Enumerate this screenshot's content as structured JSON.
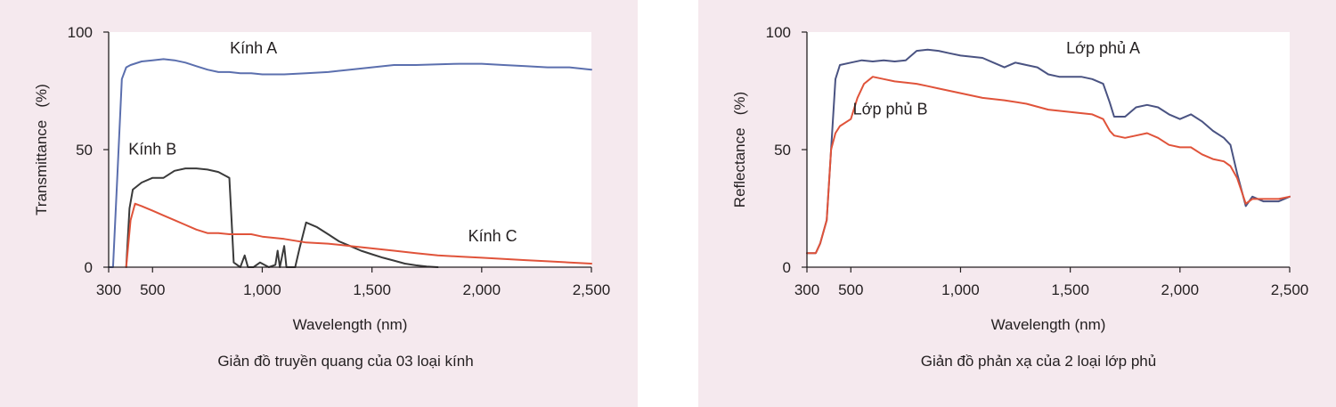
{
  "chart_data": [
    {
      "type": "line",
      "caption": "Giản đồ truyền quang của 03 loại kính",
      "xlabel": "Wavelength (nm)",
      "ylabel": "Transmittance   (%)",
      "xlim": [
        300,
        2500
      ],
      "ylim": [
        0,
        100
      ],
      "x_ticks": [
        300,
        500,
        1000,
        1500,
        2000,
        2500
      ],
      "x_tick_labels": [
        "300",
        "500",
        "1,000",
        "1,500",
        "2,000",
        "2,500"
      ],
      "y_ticks": [
        0,
        50,
        100
      ],
      "y_tick_labels": [
        "0",
        "50",
        "100"
      ],
      "grid": false,
      "series": [
        {
          "name": "Kính A",
          "color": "#5b6fae",
          "points": [
            [
              300,
              0
            ],
            [
              320,
              0
            ],
            [
              340,
              40
            ],
            [
              360,
              80
            ],
            [
              380,
              85
            ],
            [
              400,
              86
            ],
            [
              450,
              87.5
            ],
            [
              500,
              88
            ],
            [
              550,
              88.5
            ],
            [
              600,
              88
            ],
            [
              650,
              87
            ],
            [
              700,
              85.5
            ],
            [
              750,
              84
            ],
            [
              800,
              83
            ],
            [
              850,
              83
            ],
            [
              900,
              82.5
            ],
            [
              950,
              82.5
            ],
            [
              1000,
              82
            ],
            [
              1100,
              82
            ],
            [
              1200,
              82.5
            ],
            [
              1300,
              83
            ],
            [
              1400,
              84
            ],
            [
              1500,
              85
            ],
            [
              1600,
              86
            ],
            [
              1700,
              86
            ],
            [
              1800,
              86.3
            ],
            [
              1900,
              86.5
            ],
            [
              2000,
              86.5
            ],
            [
              2100,
              86
            ],
            [
              2200,
              85.5
            ],
            [
              2300,
              85
            ],
            [
              2400,
              85
            ],
            [
              2500,
              84
            ]
          ],
          "label_at": [
            960,
            91
          ]
        },
        {
          "name": "Kính B",
          "color": "#3a3a3a",
          "points": [
            [
              380,
              0
            ],
            [
              395,
              25
            ],
            [
              410,
              33
            ],
            [
              450,
              36
            ],
            [
              500,
              38
            ],
            [
              550,
              38
            ],
            [
              600,
              41
            ],
            [
              650,
              42
            ],
            [
              700,
              42
            ],
            [
              750,
              41.5
            ],
            [
              800,
              40.5
            ],
            [
              850,
              38
            ],
            [
              860,
              20
            ],
            [
              870,
              2
            ],
            [
              900,
              0
            ],
            [
              920,
              5
            ],
            [
              935,
              0
            ],
            [
              960,
              0
            ],
            [
              990,
              2
            ],
            [
              1010,
              1
            ],
            [
              1030,
              0
            ],
            [
              1060,
              1
            ],
            [
              1070,
              7
            ],
            [
              1080,
              0
            ],
            [
              1100,
              9
            ],
            [
              1110,
              0
            ],
            [
              1150,
              0
            ],
            [
              1170,
              8
            ],
            [
              1200,
              19
            ],
            [
              1250,
              17
            ],
            [
              1300,
              14
            ],
            [
              1350,
              11
            ],
            [
              1400,
              9
            ],
            [
              1450,
              7
            ],
            [
              1500,
              5.5
            ],
            [
              1550,
              4
            ],
            [
              1600,
              2.8
            ],
            [
              1650,
              1.5
            ],
            [
              1700,
              0.8
            ],
            [
              1750,
              0.3
            ],
            [
              1800,
              0
            ]
          ],
          "label_at": [
            500,
            48
          ]
        },
        {
          "name": "Kính C",
          "color": "#e0533a",
          "points": [
            [
              380,
              0
            ],
            [
              400,
              20
            ],
            [
              420,
              27
            ],
            [
              450,
              26
            ],
            [
              500,
              24
            ],
            [
              550,
              22
            ],
            [
              600,
              20
            ],
            [
              650,
              18
            ],
            [
              700,
              16
            ],
            [
              750,
              14.5
            ],
            [
              800,
              14.5
            ],
            [
              850,
              14
            ],
            [
              900,
              14
            ],
            [
              950,
              14
            ],
            [
              1000,
              13
            ],
            [
              1100,
              12
            ],
            [
              1200,
              10.5
            ],
            [
              1300,
              10
            ],
            [
              1400,
              9
            ],
            [
              1500,
              8
            ],
            [
              1600,
              7
            ],
            [
              1700,
              6
            ],
            [
              1800,
              5
            ],
            [
              1900,
              4.5
            ],
            [
              2000,
              4
            ],
            [
              2100,
              3.5
            ],
            [
              2200,
              3
            ],
            [
              2300,
              2.5
            ],
            [
              2400,
              2
            ],
            [
              2500,
              1.5
            ]
          ],
          "label_at": [
            2050,
            11
          ]
        }
      ]
    },
    {
      "type": "line",
      "caption": "Giản đồ phản xạ của 2 loại lớp phủ",
      "xlabel": "Wavelength (nm)",
      "ylabel": "Reflectance   (%)",
      "xlim": [
        300,
        2500
      ],
      "ylim": [
        0,
        100
      ],
      "x_ticks": [
        300,
        500,
        1000,
        1500,
        2000,
        2500
      ],
      "x_tick_labels": [
        "300",
        "500",
        "1,000",
        "1,500",
        "2,000",
        "2,500"
      ],
      "y_ticks": [
        0,
        50,
        100
      ],
      "y_tick_labels": [
        "0",
        "50",
        "100"
      ],
      "grid": false,
      "series": [
        {
          "name": "Lớp phủ A",
          "color": "#4a5382",
          "points": [
            [
              300,
              6
            ],
            [
              340,
              6
            ],
            [
              360,
              10
            ],
            [
              390,
              20
            ],
            [
              410,
              50
            ],
            [
              430,
              80
            ],
            [
              450,
              86
            ],
            [
              500,
              87
            ],
            [
              550,
              88
            ],
            [
              600,
              87.5
            ],
            [
              650,
              88
            ],
            [
              700,
              87.5
            ],
            [
              750,
              88
            ],
            [
              800,
              92
            ],
            [
              850,
              92.5
            ],
            [
              900,
              92
            ],
            [
              950,
              91
            ],
            [
              1000,
              90
            ],
            [
              1100,
              89
            ],
            [
              1150,
              87
            ],
            [
              1200,
              85
            ],
            [
              1250,
              87
            ],
            [
              1300,
              86
            ],
            [
              1350,
              85
            ],
            [
              1400,
              82
            ],
            [
              1450,
              81
            ],
            [
              1500,
              81
            ],
            [
              1550,
              81
            ],
            [
              1600,
              80
            ],
            [
              1650,
              78
            ],
            [
              1680,
              70
            ],
            [
              1700,
              64
            ],
            [
              1750,
              64
            ],
            [
              1800,
              68
            ],
            [
              1850,
              69
            ],
            [
              1900,
              68
            ],
            [
              1950,
              65
            ],
            [
              2000,
              63
            ],
            [
              2050,
              65
            ],
            [
              2100,
              62
            ],
            [
              2150,
              58
            ],
            [
              2200,
              55
            ],
            [
              2230,
              52
            ],
            [
              2260,
              40
            ],
            [
              2300,
              26
            ],
            [
              2330,
              30
            ],
            [
              2380,
              28
            ],
            [
              2450,
              28
            ],
            [
              2500,
              30
            ]
          ],
          "label_at": [
            1650,
            91
          ]
        },
        {
          "name": "Lớp phủ B",
          "color": "#e0533a",
          "points": [
            [
              300,
              6
            ],
            [
              340,
              6
            ],
            [
              360,
              10
            ],
            [
              390,
              20
            ],
            [
              410,
              50
            ],
            [
              430,
              57
            ],
            [
              450,
              60
            ],
            [
              500,
              63
            ],
            [
              530,
              72
            ],
            [
              560,
              78
            ],
            [
              600,
              81
            ],
            [
              650,
              80
            ],
            [
              700,
              79
            ],
            [
              800,
              78
            ],
            [
              850,
              77
            ],
            [
              900,
              76
            ],
            [
              1000,
              74
            ],
            [
              1100,
              72
            ],
            [
              1200,
              71
            ],
            [
              1300,
              69.5
            ],
            [
              1400,
              67
            ],
            [
              1500,
              66
            ],
            [
              1600,
              65
            ],
            [
              1650,
              63
            ],
            [
              1680,
              58
            ],
            [
              1700,
              56
            ],
            [
              1750,
              55
            ],
            [
              1800,
              56
            ],
            [
              1850,
              57
            ],
            [
              1900,
              55
            ],
            [
              1950,
              52
            ],
            [
              2000,
              51
            ],
            [
              2050,
              51
            ],
            [
              2100,
              48
            ],
            [
              2150,
              46
            ],
            [
              2200,
              45
            ],
            [
              2230,
              43
            ],
            [
              2260,
              38
            ],
            [
              2300,
              27
            ],
            [
              2330,
              29
            ],
            [
              2380,
              29
            ],
            [
              2450,
              29
            ],
            [
              2500,
              30
            ]
          ],
          "label_at": [
            680,
            65
          ]
        }
      ]
    }
  ]
}
